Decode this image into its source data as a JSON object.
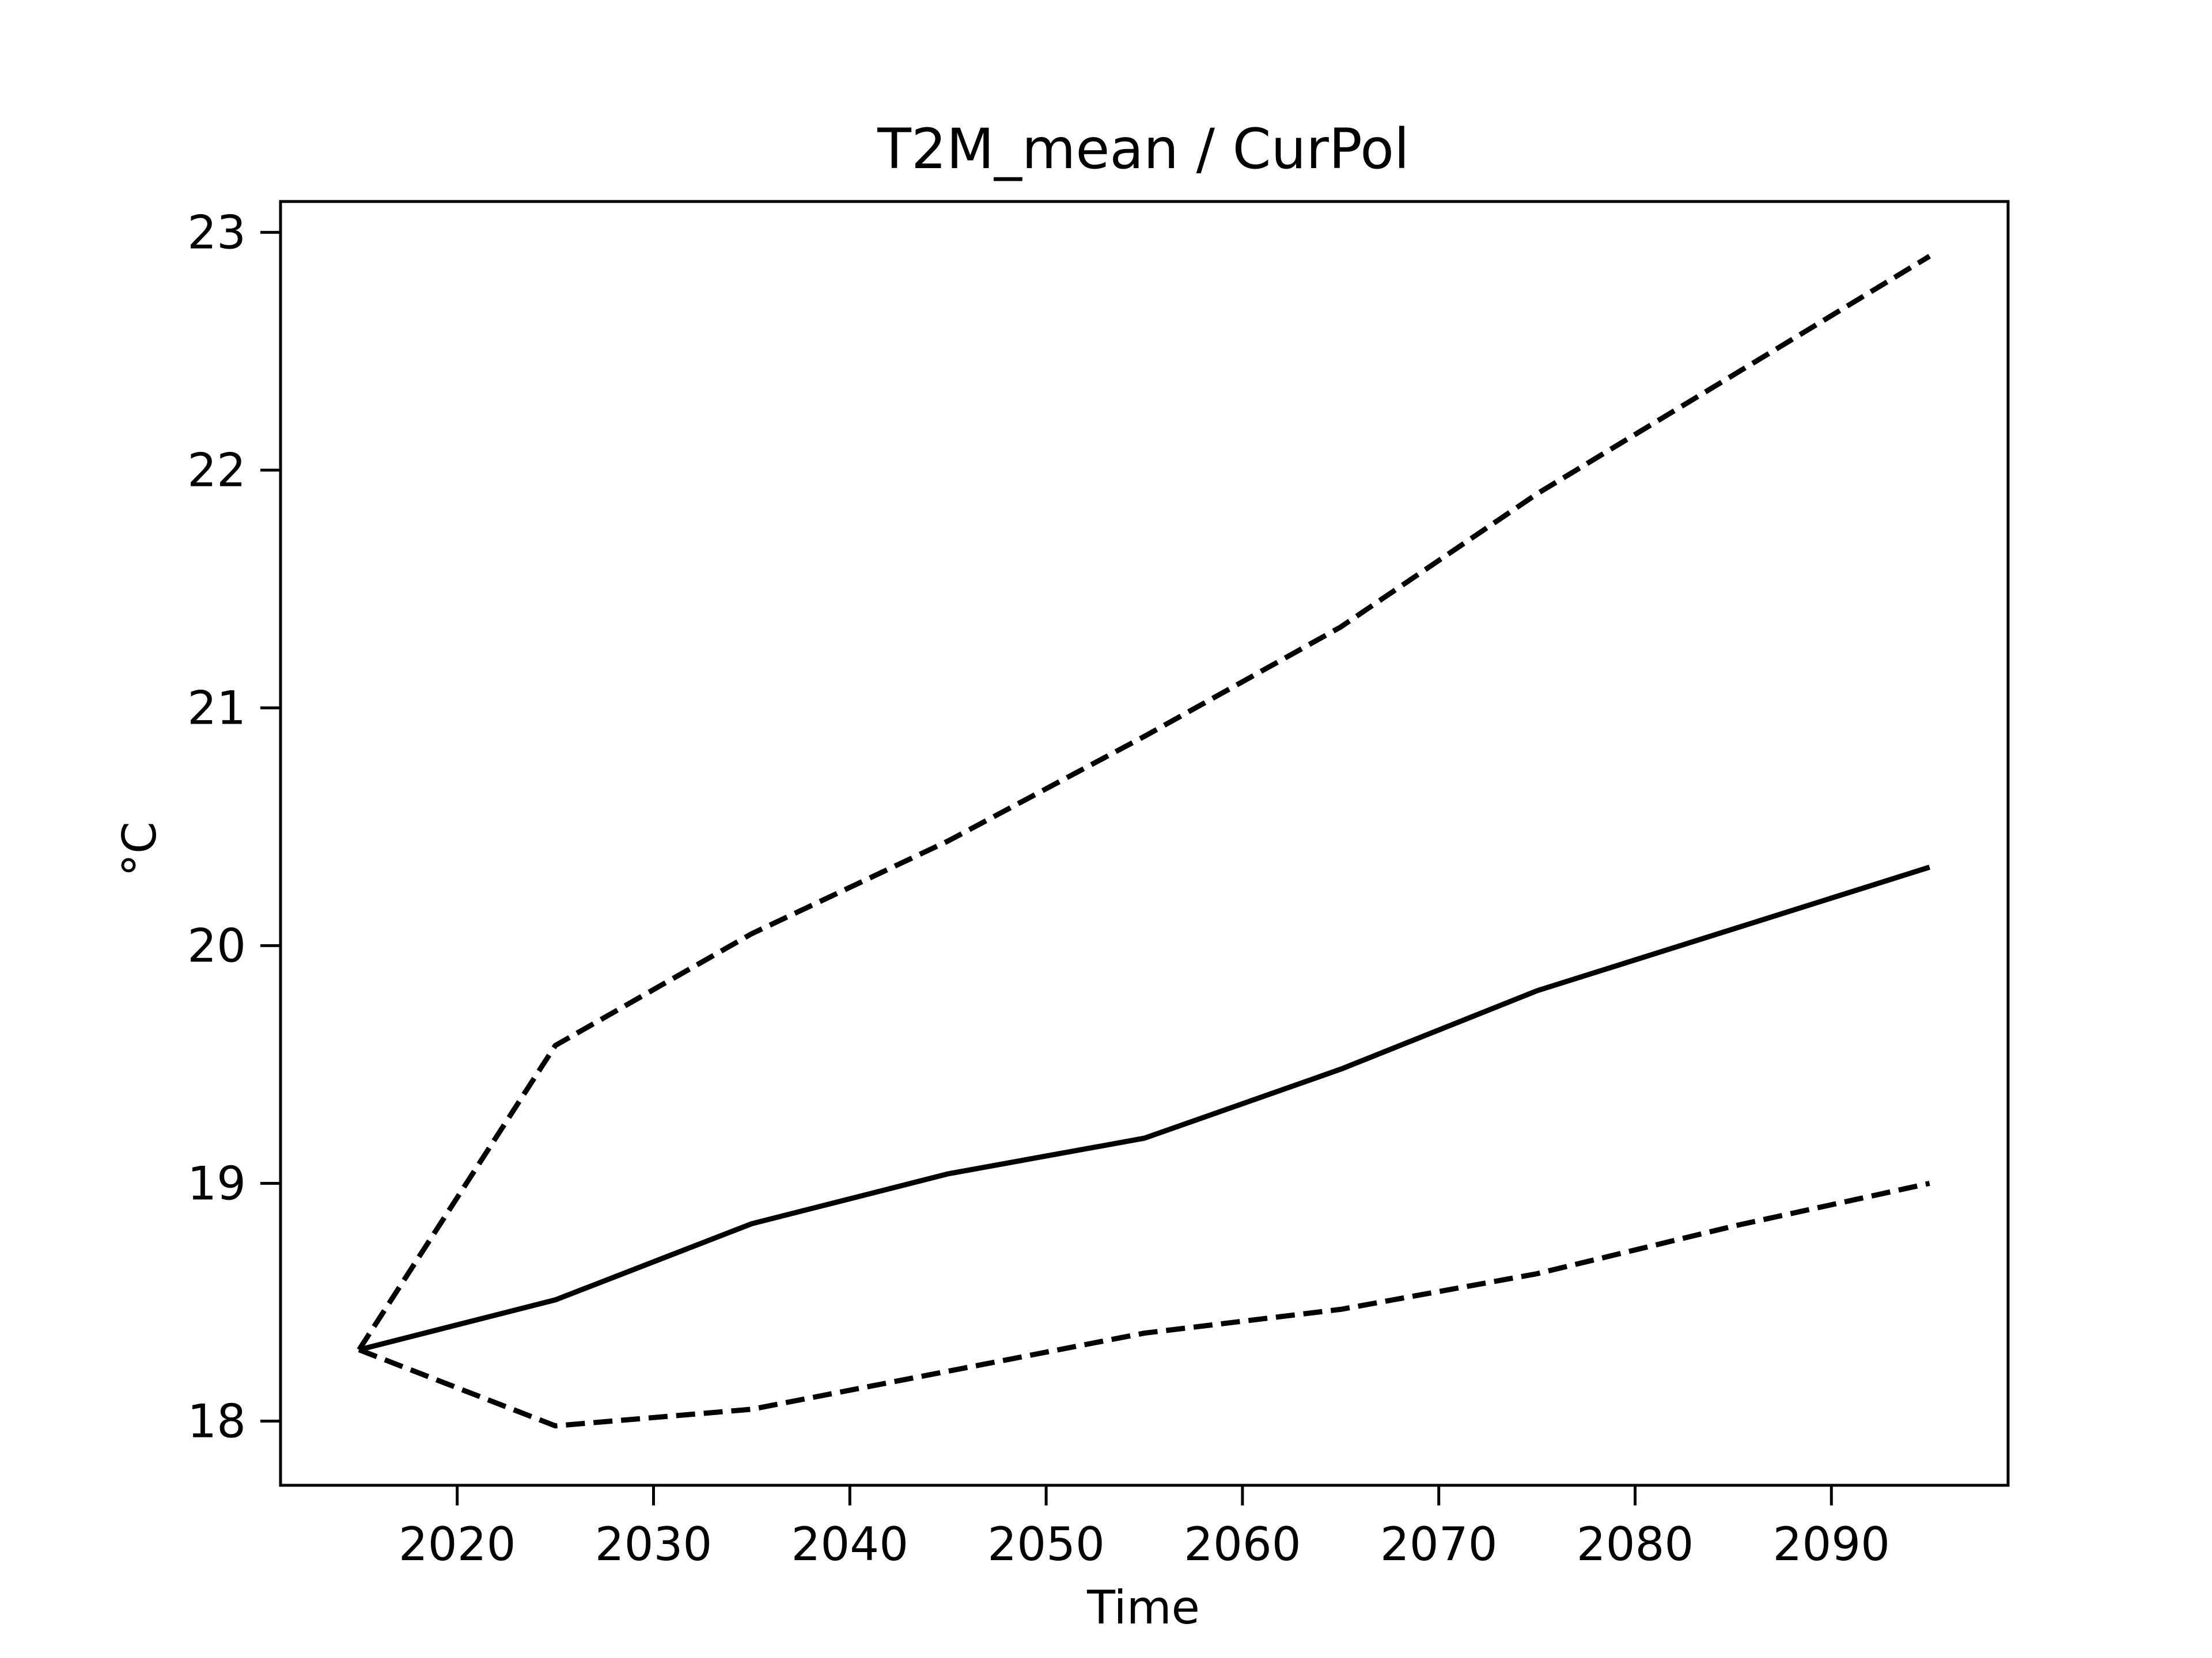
{
  "chart_data": {
    "type": "line",
    "title": "T2M_mean / CurPol",
    "xlabel": "Time",
    "ylabel": "°C",
    "xlim": [
      2011,
      2099
    ],
    "ylim": [
      17.73,
      23.13
    ],
    "grid": false,
    "legend": "none",
    "x": [
      2015,
      2025,
      2035,
      2045,
      2055,
      2065,
      2075,
      2085,
      2095
    ],
    "series": [
      {
        "style": "dashed",
        "color": "#000000",
        "values": [
          18.3,
          19.58,
          20.05,
          20.44,
          20.88,
          21.34,
          21.9,
          22.4,
          22.9
        ]
      },
      {
        "style": "solid",
        "color": "#000000",
        "values": [
          18.3,
          18.51,
          18.83,
          19.04,
          19.19,
          19.48,
          19.81,
          20.07,
          20.33
        ]
      },
      {
        "style": "dashed",
        "color": "#000000",
        "values": [
          18.3,
          17.98,
          18.05,
          18.21,
          18.37,
          18.47,
          18.62,
          18.82,
          19.0
        ]
      }
    ],
    "xticks": [
      2020,
      2030,
      2040,
      2050,
      2060,
      2070,
      2080,
      2090
    ],
    "yticks": [
      18,
      19,
      20,
      21,
      22,
      23
    ]
  }
}
